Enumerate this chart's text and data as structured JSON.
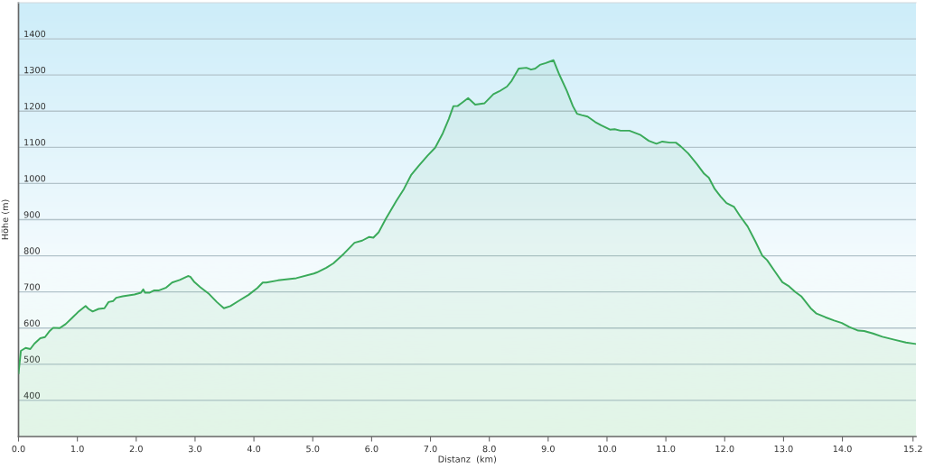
{
  "chart_data": {
    "type": "area",
    "xlabel": "Distanz  (km)",
    "ylabel": "Höhe (m)",
    "x": [
      0,
      0.04,
      0.12,
      0.2,
      0.27,
      0.37,
      0.45,
      0.53,
      0.59,
      0.7,
      0.8,
      0.91,
      1.01,
      1.14,
      1.19,
      1.26,
      1.36,
      1.46,
      1.53,
      1.61,
      1.66,
      1.77,
      1.97,
      2.08,
      2.12,
      2.15,
      2.23,
      2.3,
      2.38,
      2.51,
      2.61,
      2.74,
      2.88,
      2.92,
      2.99,
      3.09,
      3.24,
      3.37,
      3.49,
      3.6,
      3.75,
      3.91,
      4.06,
      4.15,
      4.21,
      4.41,
      4.72,
      5.02,
      5.07,
      5.23,
      5.35,
      5.53,
      5.71,
      5.84,
      5.96,
      6.03,
      6.12,
      6.24,
      6.42,
      6.55,
      6.67,
      6.8,
      6.95,
      7.08,
      7.21,
      7.31,
      7.39,
      7.46,
      7.56,
      7.64,
      7.76,
      7.92,
      8.07,
      8.17,
      8.3,
      8.38,
      8.5,
      8.63,
      8.71,
      8.78,
      8.86,
      8.96,
      9.09,
      9.19,
      9.32,
      9.42,
      9.49,
      9.57,
      9.67,
      9.8,
      9.9,
      10.05,
      10.13,
      10.23,
      10.38,
      10.56,
      10.71,
      10.84,
      10.94,
      11.07,
      11.17,
      11.25,
      11.38,
      11.53,
      11.65,
      11.73,
      11.83,
      11.93,
      12.03,
      12.16,
      12.26,
      12.39,
      12.52,
      12.64,
      12.72,
      12.85,
      12.98,
      13.08,
      13.2,
      13.3,
      13.46,
      13.56,
      13.71,
      13.86,
      13.99,
      14.12,
      14.27,
      14.37,
      14.52,
      14.68,
      14.88,
      15.08,
      15.25
    ],
    "series": [
      {
        "color": "#3aaa5a",
        "values": [
          475,
          537,
          545,
          542,
          557,
          572,
          575,
          592,
          601,
          600,
          611,
          628,
          644,
          661,
          653,
          646,
          653,
          655,
          672,
          675,
          684,
          688,
          693,
          698,
          707,
          698,
          698,
          704,
          704,
          712,
          726,
          733,
          744,
          742,
          727,
          713,
          694,
          672,
          655,
          661,
          676,
          692,
          711,
          726,
          726,
          732,
          738,
          751,
          754,
          767,
          779,
          806,
          836,
          842,
          852,
          850,
          865,
          902,
          952,
          985,
          1023,
          1049,
          1077,
          1099,
          1139,
          1178,
          1214,
          1214,
          1226,
          1236,
          1218,
          1222,
          1247,
          1255,
          1268,
          1284,
          1318,
          1320,
          1315,
          1318,
          1328,
          1333,
          1341,
          1301,
          1255,
          1214,
          1193,
          1189,
          1185,
          1170,
          1161,
          1149,
          1150,
          1146,
          1146,
          1135,
          1118,
          1110,
          1116,
          1113,
          1113,
          1103,
          1083,
          1053,
          1027,
          1016,
          985,
          964,
          946,
          935,
          910,
          881,
          840,
          800,
          788,
          757,
          727,
          717,
          700,
          688,
          655,
          640,
          630,
          621,
          614,
          603,
          593,
          592,
          585,
          576,
          568,
          560,
          556
        ]
      }
    ],
    "xlim": [
      0,
      15.25
    ],
    "ylim": [
      300,
      1500
    ],
    "xticks": [
      {
        "value": 0,
        "label": "0.0"
      },
      {
        "value": 1,
        "label": "1.0"
      },
      {
        "value": 2,
        "label": "2.0"
      },
      {
        "value": 3,
        "label": "3.0"
      },
      {
        "value": 4,
        "label": "4.0"
      },
      {
        "value": 5,
        "label": "5.0"
      },
      {
        "value": 6,
        "label": "6.0"
      },
      {
        "value": 7,
        "label": "7.0"
      },
      {
        "value": 8,
        "label": "8.0"
      },
      {
        "value": 9,
        "label": "9.0"
      },
      {
        "value": 10,
        "label": "10.0"
      },
      {
        "value": 11,
        "label": "11.0"
      },
      {
        "value": 12,
        "label": "12.0"
      },
      {
        "value": 13,
        "label": "13.0"
      },
      {
        "value": 14,
        "label": "14.0"
      },
      15.2
    ],
    "yticks": [
      400,
      500,
      600,
      700,
      800,
      900,
      1000,
      1100,
      1200,
      1300,
      1400
    ],
    "grid": "y",
    "line_style": "solid"
  }
}
